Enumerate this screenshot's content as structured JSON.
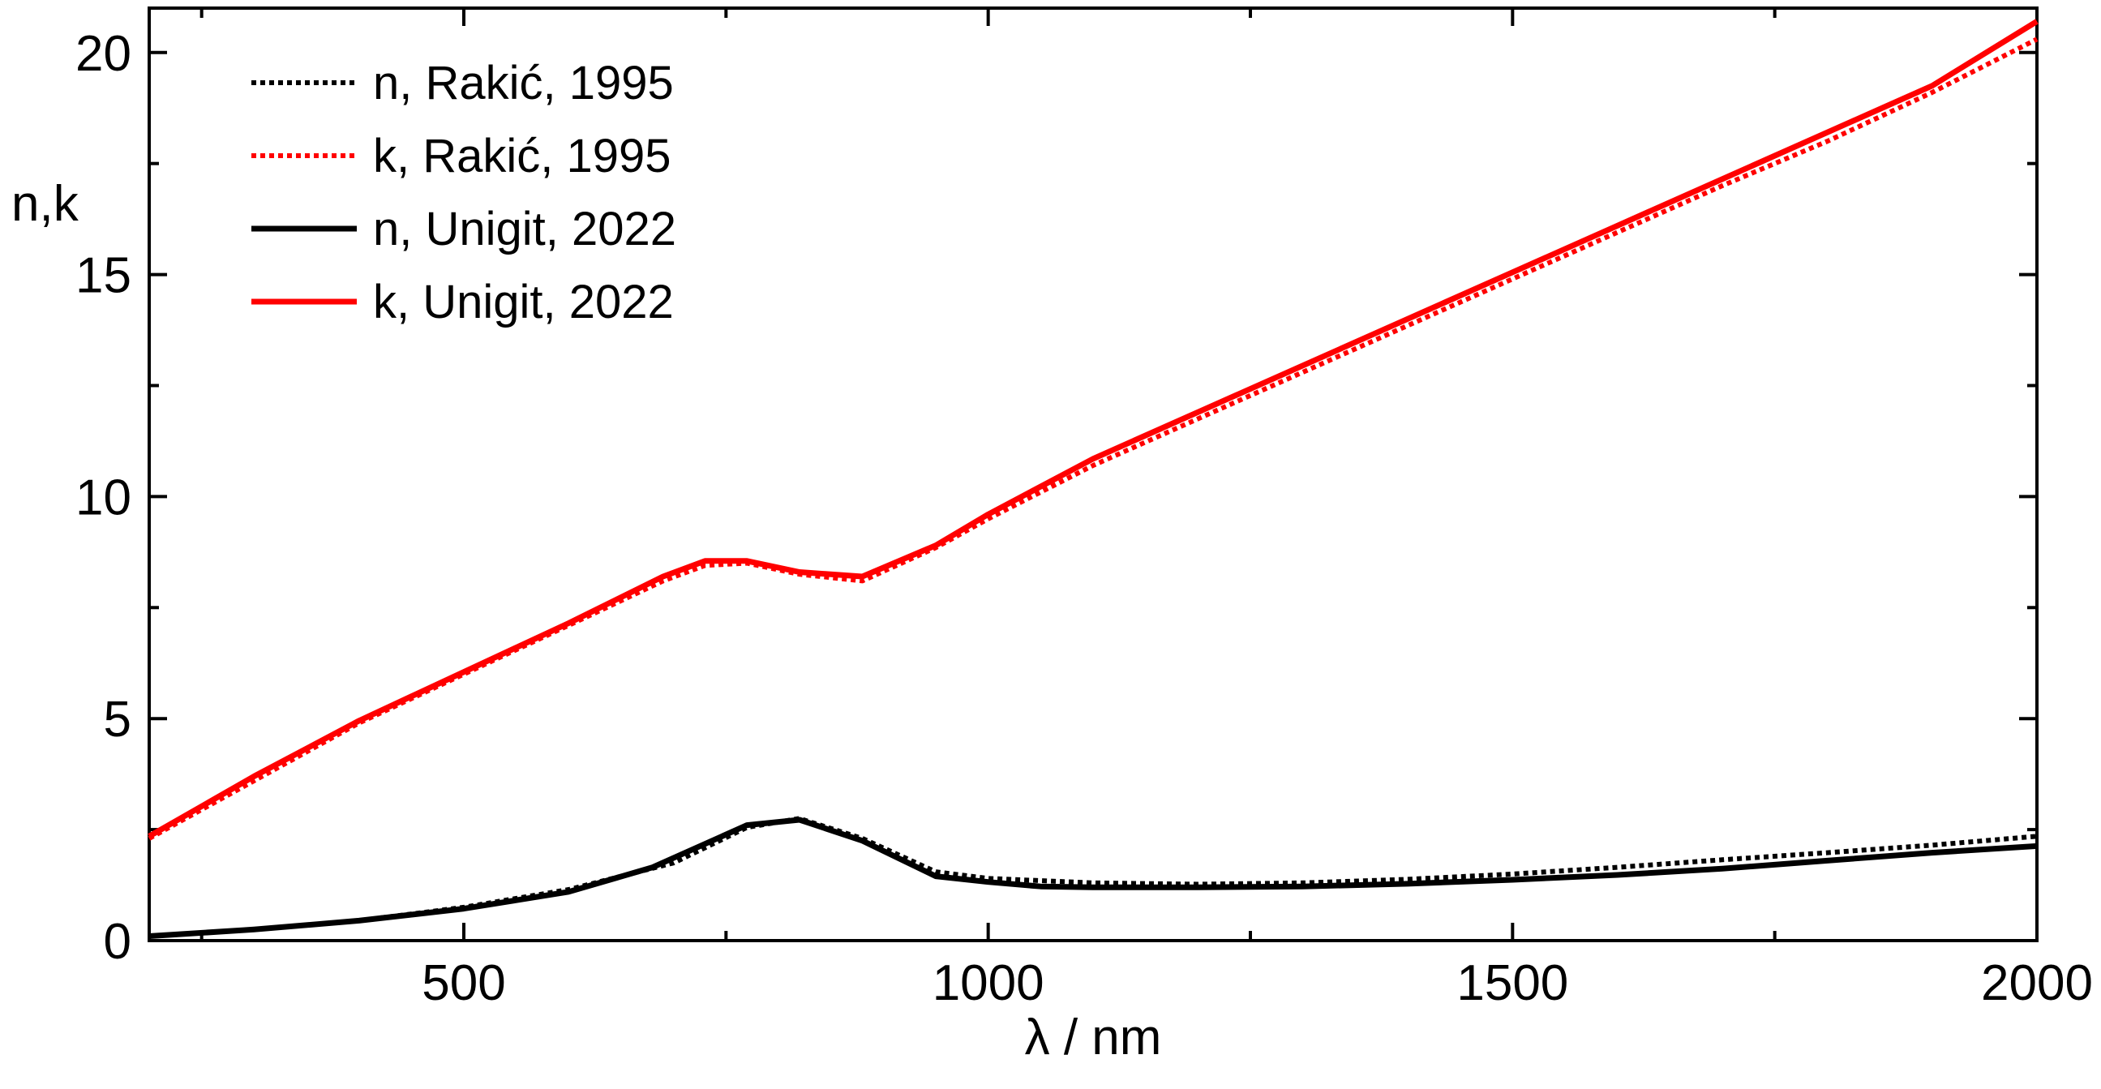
{
  "chart_data": {
    "type": "line",
    "title": "",
    "xlabel": "λ / nm",
    "ylabel": "n,k",
    "xlim": [
      200,
      2000
    ],
    "ylim": [
      0,
      21
    ],
    "x_ticks": [
      500,
      1000,
      1500,
      2000
    ],
    "x_minor_ticks": [
      250,
      750,
      1250,
      1750
    ],
    "y_ticks": [
      0,
      5,
      10,
      15,
      20
    ],
    "y_minor_ticks": [
      2.5,
      7.5,
      12.5,
      17.5
    ],
    "grid": false,
    "legend_position": "top-left",
    "series": [
      {
        "name": "n, Rakić, 1995",
        "color": "#000000",
        "style": "dotted",
        "points": [
          [
            200,
            0.1
          ],
          [
            300,
            0.25
          ],
          [
            400,
            0.45
          ],
          [
            500,
            0.75
          ],
          [
            600,
            1.15
          ],
          [
            700,
            1.75
          ],
          [
            770,
            2.55
          ],
          [
            820,
            2.75
          ],
          [
            880,
            2.3
          ],
          [
            950,
            1.55
          ],
          [
            1000,
            1.4
          ],
          [
            1100,
            1.3
          ],
          [
            1200,
            1.27
          ],
          [
            1300,
            1.3
          ],
          [
            1400,
            1.38
          ],
          [
            1500,
            1.5
          ],
          [
            1600,
            1.65
          ],
          [
            1700,
            1.82
          ],
          [
            1800,
            1.98
          ],
          [
            1900,
            2.15
          ],
          [
            2000,
            2.35
          ]
        ]
      },
      {
        "name": "k, Rakić, 1995",
        "color": "#ff0000",
        "style": "dotted",
        "points": [
          [
            200,
            2.3
          ],
          [
            300,
            3.6
          ],
          [
            400,
            4.9
          ],
          [
            500,
            6.0
          ],
          [
            600,
            7.1
          ],
          [
            690,
            8.1
          ],
          [
            730,
            8.45
          ],
          [
            770,
            8.5
          ],
          [
            820,
            8.25
          ],
          [
            880,
            8.1
          ],
          [
            950,
            8.85
          ],
          [
            1000,
            9.5
          ],
          [
            1100,
            10.7
          ],
          [
            1200,
            11.75
          ],
          [
            1300,
            12.8
          ],
          [
            1400,
            13.85
          ],
          [
            1500,
            14.9
          ],
          [
            1600,
            15.95
          ],
          [
            1700,
            17.0
          ],
          [
            1800,
            18.0
          ],
          [
            1900,
            19.1
          ],
          [
            2000,
            20.3
          ]
        ]
      },
      {
        "name": "n, Unigit, 2022",
        "color": "#000000",
        "style": "solid",
        "points": [
          [
            200,
            0.1
          ],
          [
            300,
            0.25
          ],
          [
            400,
            0.45
          ],
          [
            500,
            0.72
          ],
          [
            600,
            1.1
          ],
          [
            680,
            1.65
          ],
          [
            770,
            2.6
          ],
          [
            820,
            2.72
          ],
          [
            880,
            2.25
          ],
          [
            950,
            1.45
          ],
          [
            1000,
            1.32
          ],
          [
            1050,
            1.22
          ],
          [
            1100,
            1.2
          ],
          [
            1200,
            1.2
          ],
          [
            1300,
            1.22
          ],
          [
            1400,
            1.28
          ],
          [
            1500,
            1.37
          ],
          [
            1600,
            1.48
          ],
          [
            1700,
            1.62
          ],
          [
            1800,
            1.8
          ],
          [
            1900,
            1.98
          ],
          [
            2000,
            2.13
          ]
        ]
      },
      {
        "name": "k, Unigit, 2022",
        "color": "#ff0000",
        "style": "solid",
        "points": [
          [
            200,
            2.35
          ],
          [
            300,
            3.7
          ],
          [
            400,
            4.95
          ],
          [
            500,
            6.05
          ],
          [
            600,
            7.15
          ],
          [
            690,
            8.2
          ],
          [
            730,
            8.55
          ],
          [
            770,
            8.55
          ],
          [
            820,
            8.3
          ],
          [
            880,
            8.2
          ],
          [
            950,
            8.9
          ],
          [
            1000,
            9.6
          ],
          [
            1100,
            10.85
          ],
          [
            1200,
            11.9
          ],
          [
            1300,
            12.95
          ],
          [
            1400,
            14.0
          ],
          [
            1500,
            15.05
          ],
          [
            1600,
            16.1
          ],
          [
            1700,
            17.15
          ],
          [
            1800,
            18.2
          ],
          [
            1900,
            19.25
          ],
          [
            2000,
            20.7
          ]
        ]
      }
    ]
  }
}
